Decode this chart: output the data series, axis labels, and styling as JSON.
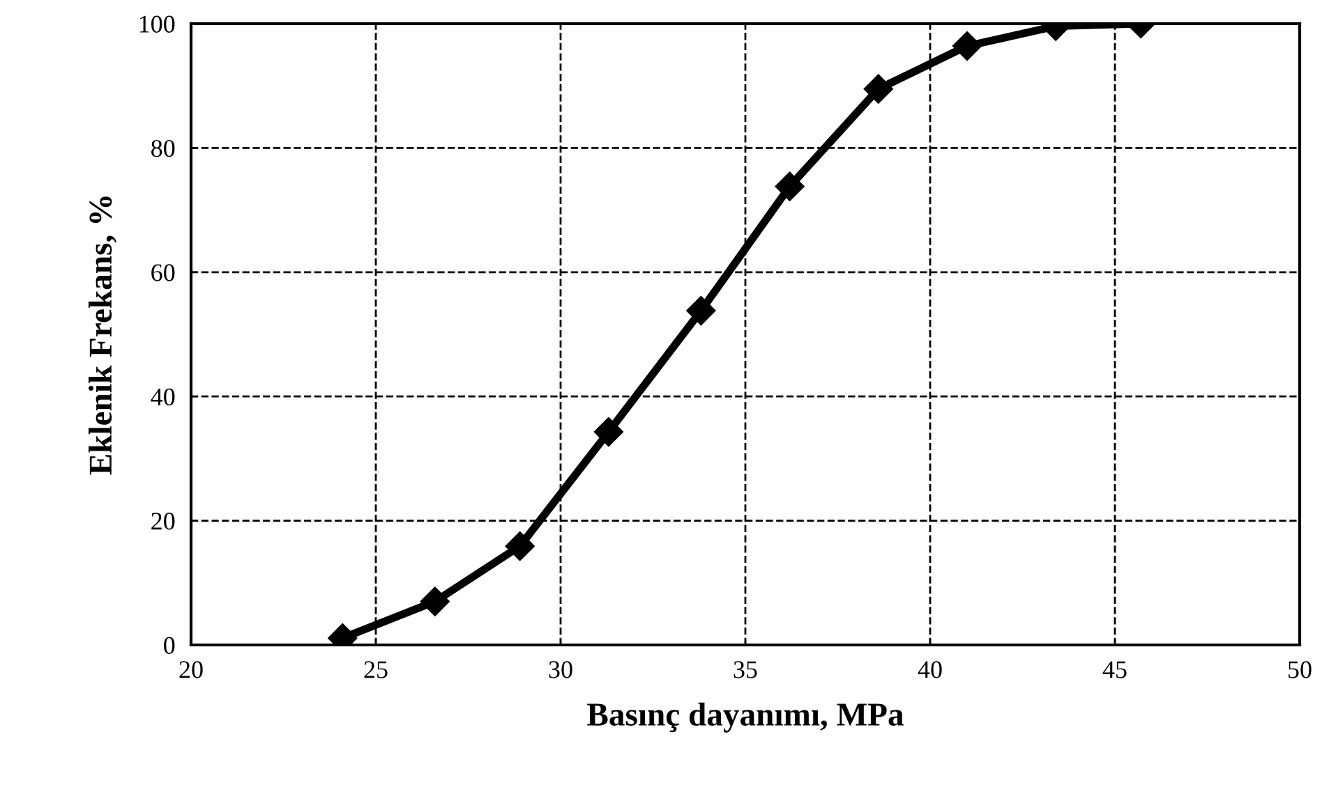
{
  "chart_data": {
    "type": "line",
    "xlabel": "Basınç dayanımı, MPa",
    "ylabel": "Eklenik Frekans, %",
    "x": [
      24.1,
      26.6,
      28.9,
      31.3,
      33.8,
      36.2,
      38.6,
      41.0,
      43.4,
      45.7
    ],
    "series": [
      {
        "color": "#000000",
        "values": [
          1.1,
          7,
          15.9,
          34.3,
          53.8,
          73.8,
          89.5,
          96.4,
          99.6,
          100
        ]
      }
    ],
    "xlim": [
      20,
      50
    ],
    "xticks": [
      20,
      25,
      30,
      35,
      40,
      45,
      50
    ],
    "ylim": [
      0,
      100
    ],
    "yticks": [
      0,
      20,
      40,
      60,
      80,
      100
    ],
    "grid": true,
    "marker": "diamond",
    "line_style": "solid"
  }
}
